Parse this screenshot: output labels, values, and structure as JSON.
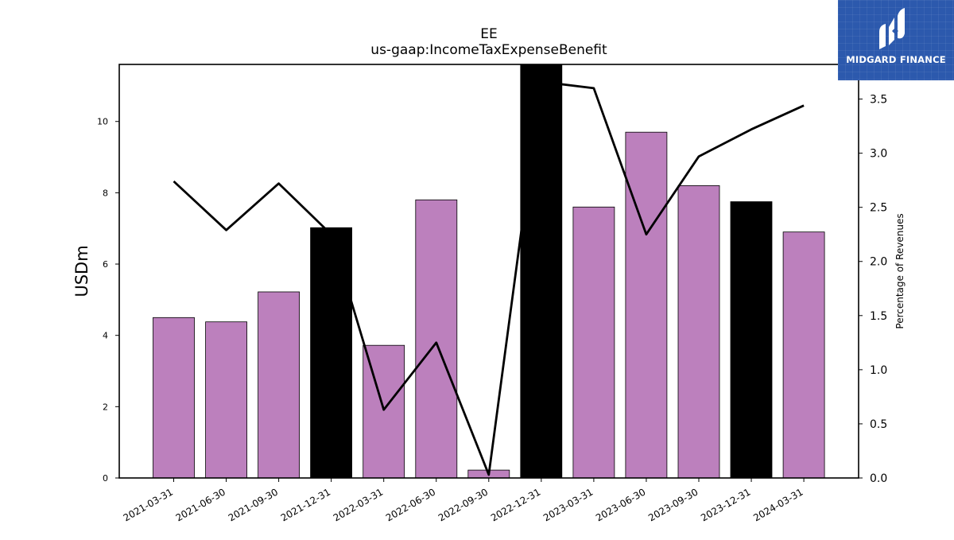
{
  "brand": {
    "logo_text": "MIDGARD FINANCE",
    "logo_color": "#2c59ad"
  },
  "chart_data": {
    "type": "bar",
    "title": "EE",
    "subtitle": "us-gaap:IncomeTaxExpenseBenefit",
    "ylabel": "USDm",
    "y2label": "Percentage of Revenues",
    "categories": [
      "2021-03-31",
      "2021-06-30",
      "2021-09-30",
      "2021-12-31",
      "2022-03-31",
      "2022-06-30",
      "2022-09-30",
      "2022-12-31",
      "2023-03-31",
      "2023-06-30",
      "2023-09-30",
      "2023-12-31",
      "2024-03-31"
    ],
    "series": [
      {
        "type": "bar",
        "axis": "left",
        "values": [
          4.5,
          4.38,
          5.22,
          7.02,
          3.72,
          7.8,
          0.22,
          11.6,
          7.6,
          9.7,
          8.2,
          7.75,
          6.9
        ],
        "colors": [
          "#bc80bd",
          "#bc80bd",
          "#bc80bd",
          "#000000",
          "#bc80bd",
          "#bc80bd",
          "#bc80bd",
          "#000000",
          "#bc80bd",
          "#bc80bd",
          "#bc80bd",
          "#000000",
          "#bc80bd"
        ]
      },
      {
        "type": "line",
        "axis": "right",
        "color": "#000000",
        "values": [
          2.74,
          2.29,
          2.72,
          2.25,
          0.63,
          1.25,
          0.03,
          3.66,
          3.6,
          2.25,
          2.97,
          3.22,
          3.44
        ]
      }
    ],
    "ylim": [
      0,
      11.6
    ],
    "y2lim": [
      0,
      3.82
    ],
    "yticks": [
      "0",
      "2",
      "4",
      "6",
      "8",
      "10"
    ],
    "y2ticks": [
      "0.0",
      "0.5",
      "1.0",
      "1.5",
      "2.0",
      "2.5",
      "3.0",
      "3.5"
    ],
    "grid": false,
    "legend": "none"
  }
}
